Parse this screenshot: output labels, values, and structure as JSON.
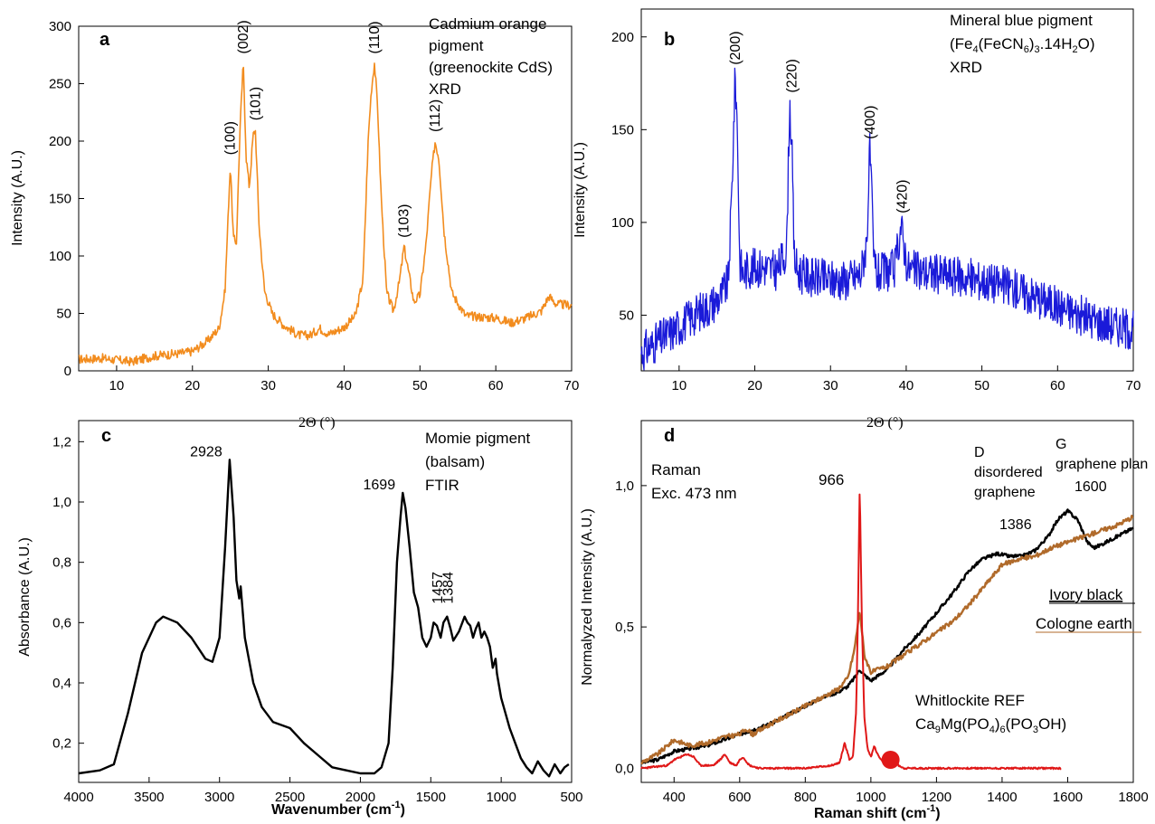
{
  "chart_data": [
    {
      "id": "a",
      "type": "line",
      "panel_label": "a",
      "ylabel": "Intensity (A.U.)",
      "xlabel": "2Θ (°)",
      "xlim": [
        5,
        70
      ],
      "ylim": [
        0,
        300
      ],
      "xticks": [
        10,
        20,
        30,
        40,
        50,
        60,
        70
      ],
      "yticks": [
        0,
        50,
        100,
        150,
        200,
        250,
        300
      ],
      "legend_text": [
        "Cadmium orange",
        "pigment",
        "(greenockite CdS)",
        "XRD"
      ],
      "color": "#f28c1e",
      "series": [
        {
          "x": [
            5,
            8,
            12,
            15,
            18,
            20,
            22,
            23.5,
            24.3,
            24.8,
            25.0,
            25.4,
            25.8,
            26.3,
            26.7,
            27.1,
            27.5,
            28.0,
            28.3,
            28.8,
            29.5,
            30.5,
            32,
            34,
            35.5,
            36.8,
            38,
            40,
            41.5,
            42.5,
            43.2,
            43.6,
            44.0,
            44.4,
            44.9,
            45.6,
            46.5,
            47.3,
            47.9,
            48.4,
            49.2,
            50.0,
            50.8,
            51.5,
            52.0,
            52.5,
            53.2,
            54.2,
            56,
            58,
            60,
            62,
            64,
            66,
            67,
            68,
            70
          ],
          "y": [
            10,
            11,
            8,
            13,
            15,
            17,
            26,
            37,
            70,
            150,
            180,
            115,
            112,
            215,
            268,
            185,
            160,
            205,
            210,
            125,
            70,
            50,
            40,
            31,
            31,
            37,
            32,
            38,
            48,
            80,
            205,
            245,
            268,
            232,
            150,
            68,
            52,
            78,
            108,
            90,
            60,
            66,
            110,
            170,
            200,
            185,
            120,
            68,
            48,
            47,
            46,
            42,
            46,
            52,
            65,
            58,
            57
          ]
        }
      ],
      "peak_labels": [
        {
          "x": 25.0,
          "y": 180,
          "text": "(100)"
        },
        {
          "x": 26.7,
          "y": 268,
          "text": "(002)"
        },
        {
          "x": 28.3,
          "y": 210,
          "text": "(101)"
        },
        {
          "x": 44.0,
          "y": 268,
          "text": "(110)"
        },
        {
          "x": 47.9,
          "y": 108,
          "text": "(103)"
        },
        {
          "x": 52.0,
          "y": 200,
          "text": "(112)"
        }
      ]
    },
    {
      "id": "b",
      "type": "line",
      "panel_label": "b",
      "ylabel": "Intensity (A.U.)",
      "xlabel": "2Θ (°)",
      "xlim": [
        5,
        70
      ],
      "ylim": [
        20,
        215
      ],
      "xticks": [
        10,
        20,
        30,
        40,
        50,
        60,
        70
      ],
      "yticks": [
        50,
        100,
        150,
        200
      ],
      "legend_text": [
        "Mineral blue pigment",
        "(Fe4(FeCN6)3.14H2O)",
        "XRD"
      ],
      "color": "#1a1ad9",
      "series": [
        {
          "x": [
            5,
            8,
            10,
            12,
            14,
            15.5,
            16.5,
            17.0,
            17.4,
            17.7,
            18.0,
            18.4,
            19,
            21,
            23,
            24.2,
            24.6,
            24.9,
            25.2,
            25.6,
            26.3,
            28,
            30,
            32,
            34,
            34.8,
            35.2,
            35.4,
            35.7,
            36.2,
            37,
            38.5,
            39.3,
            39.7,
            40.2,
            41,
            43,
            45,
            48,
            51,
            54,
            57,
            60,
            63,
            66,
            70
          ],
          "y": [
            30,
            38,
            44,
            50,
            55,
            60,
            68,
            120,
            180,
            150,
            80,
            72,
            75,
            76,
            74,
            85,
            165,
            140,
            82,
            74,
            72,
            70,
            69,
            69,
            72,
            90,
            140,
            118,
            80,
            72,
            73,
            75,
            98,
            88,
            75,
            74,
            73,
            72,
            70,
            68,
            65,
            60,
            55,
            50,
            46,
            42
          ]
        }
      ],
      "peak_labels": [
        {
          "x": 17.4,
          "y": 180,
          "text": "(200)"
        },
        {
          "x": 24.9,
          "y": 165,
          "text": "(220)"
        },
        {
          "x": 35.2,
          "y": 140,
          "text": "(400)"
        },
        {
          "x": 39.5,
          "y": 100,
          "text": "(420)"
        }
      ]
    },
    {
      "id": "c",
      "type": "line",
      "panel_label": "c",
      "ylabel": "Absorbance (A.U.)",
      "xlabel": "Wavenumber (cm-1)",
      "xlim": [
        4000,
        500
      ],
      "ylim": [
        0.07,
        1.27
      ],
      "xticks": [
        4000,
        3500,
        3000,
        2500,
        2000,
        1500,
        1000,
        500
      ],
      "yticks": [
        0.2,
        0.4,
        0.6,
        0.8,
        1.0,
        1.2
      ],
      "ytick_labels": [
        "0,2",
        "0,4",
        "0,6",
        "0,8",
        "1,0",
        "1,2"
      ],
      "legend_text": [
        "Momie pigment",
        "(balsam)",
        "FTIR"
      ],
      "color": "#000000",
      "series": [
        {
          "x": [
            4000,
            3850,
            3750,
            3650,
            3550,
            3450,
            3400,
            3300,
            3200,
            3100,
            3050,
            3000,
            2960,
            2928,
            2900,
            2880,
            2860,
            2850,
            2820,
            2760,
            2700,
            2620,
            2500,
            2400,
            2300,
            2200,
            2100,
            2000,
            1900,
            1850,
            1800,
            1770,
            1740,
            1715,
            1699,
            1680,
            1650,
            1620,
            1590,
            1560,
            1530,
            1500,
            1480,
            1457,
            1430,
            1410,
            1384,
            1360,
            1340,
            1300,
            1260,
            1240,
            1220,
            1200,
            1180,
            1160,
            1140,
            1120,
            1100,
            1080,
            1060,
            1040,
            1030,
            1000,
            970,
            940,
            900,
            860,
            820,
            780,
            740,
            700,
            660,
            620,
            580,
            550,
            520
          ],
          "y": [
            0.1,
            0.11,
            0.13,
            0.3,
            0.5,
            0.6,
            0.62,
            0.6,
            0.55,
            0.48,
            0.47,
            0.55,
            0.85,
            1.14,
            0.95,
            0.74,
            0.68,
            0.72,
            0.55,
            0.4,
            0.32,
            0.27,
            0.25,
            0.2,
            0.16,
            0.12,
            0.11,
            0.1,
            0.1,
            0.12,
            0.2,
            0.45,
            0.8,
            0.95,
            1.03,
            0.98,
            0.85,
            0.7,
            0.65,
            0.55,
            0.52,
            0.55,
            0.6,
            0.59,
            0.55,
            0.6,
            0.62,
            0.58,
            0.54,
            0.57,
            0.62,
            0.6,
            0.59,
            0.55,
            0.58,
            0.6,
            0.55,
            0.57,
            0.55,
            0.52,
            0.45,
            0.48,
            0.43,
            0.35,
            0.3,
            0.25,
            0.2,
            0.15,
            0.12,
            0.1,
            0.14,
            0.11,
            0.09,
            0.13,
            0.1,
            0.12,
            0.13
          ]
        }
      ],
      "peak_labels": [
        {
          "x": 2928,
          "y": 1.14,
          "text": "2928"
        },
        {
          "x": 1699,
          "y": 1.03,
          "text": "1699"
        },
        {
          "x": 1457,
          "y": 0.62,
          "text": "1457"
        },
        {
          "x": 1384,
          "y": 0.62,
          "text": "1384"
        }
      ]
    },
    {
      "id": "d",
      "type": "line",
      "panel_label": "d",
      "ylabel": "Normalyzed Intensity (A.U.)",
      "xlabel": "Raman shift (cm-1)",
      "xlim": [
        300,
        1800
      ],
      "ylim": [
        -0.05,
        1.23
      ],
      "xticks": [
        400,
        600,
        800,
        1000,
        1200,
        1400,
        1600,
        1800
      ],
      "yticks": [
        0.0,
        0.5,
        1.0
      ],
      "ytick_labels": [
        "0,0",
        "0,5",
        "1,0"
      ],
      "annotation": [
        "Raman",
        "Exc. 473 nm"
      ],
      "peak_966": "966",
      "d_band": [
        "D",
        "disordered",
        "graphene",
        "1386"
      ],
      "g_band": [
        "G",
        "graphene plan",
        "1600"
      ],
      "series": [
        {
          "name": "Ivory black",
          "color": "#000000",
          "x": [
            300,
            350,
            400,
            450,
            500,
            550,
            600,
            650,
            700,
            750,
            800,
            850,
            900,
            930,
            950,
            966,
            980,
            1000,
            1050,
            1100,
            1150,
            1200,
            1250,
            1300,
            1340,
            1386,
            1420,
            1460,
            1500,
            1540,
            1570,
            1600,
            1630,
            1660,
            1680,
            1700,
            1750,
            1800
          ],
          "y": [
            0.02,
            0.03,
            0.06,
            0.07,
            0.08,
            0.1,
            0.12,
            0.14,
            0.16,
            0.19,
            0.22,
            0.25,
            0.27,
            0.29,
            0.32,
            0.35,
            0.33,
            0.31,
            0.35,
            0.42,
            0.48,
            0.55,
            0.62,
            0.7,
            0.74,
            0.76,
            0.75,
            0.75,
            0.77,
            0.82,
            0.88,
            0.91,
            0.88,
            0.8,
            0.78,
            0.79,
            0.82,
            0.85
          ]
        },
        {
          "name": "Cologne earth",
          "color": "#b06a2a",
          "x": [
            300,
            350,
            380,
            400,
            450,
            500,
            550,
            600,
            620,
            640,
            700,
            750,
            800,
            850,
            900,
            930,
            950,
            966,
            980,
            1000,
            1050,
            1100,
            1150,
            1200,
            1250,
            1300,
            1350,
            1400,
            1450,
            1500,
            1550,
            1600,
            1650,
            1700,
            1750,
            1800
          ],
          "y": [
            0.02,
            0.05,
            0.08,
            0.1,
            0.08,
            0.09,
            0.11,
            0.12,
            0.14,
            0.12,
            0.16,
            0.19,
            0.22,
            0.25,
            0.28,
            0.32,
            0.42,
            0.56,
            0.4,
            0.34,
            0.36,
            0.4,
            0.44,
            0.48,
            0.52,
            0.58,
            0.65,
            0.72,
            0.74,
            0.75,
            0.78,
            0.8,
            0.82,
            0.84,
            0.86,
            0.89
          ]
        },
        {
          "name": "Whitlockite REF",
          "color": "#e01818",
          "x": [
            300,
            380,
            400,
            420,
            440,
            460,
            480,
            520,
            540,
            555,
            570,
            590,
            600,
            610,
            630,
            660,
            700,
            800,
            880,
            905,
            920,
            935,
            945,
            955,
            960,
            966,
            972,
            980,
            990,
            1000,
            1010,
            1020,
            1030,
            1045,
            1060,
            1075,
            1085,
            1100,
            1150,
            1200,
            1300,
            1400,
            1500,
            1580
          ],
          "y": [
            0.0,
            0.01,
            0.03,
            0.04,
            0.05,
            0.04,
            0.01,
            0.01,
            0.03,
            0.05,
            0.02,
            0.01,
            0.03,
            0.04,
            0.01,
            0.0,
            0.0,
            0.0,
            0.01,
            0.02,
            0.09,
            0.03,
            0.04,
            0.2,
            0.5,
            1.0,
            0.55,
            0.18,
            0.07,
            0.04,
            0.08,
            0.05,
            0.03,
            0.02,
            0.02,
            0.03,
            0.01,
            0.0,
            0.0,
            0.0,
            0.0,
            0.0,
            0.0,
            0.0
          ]
        }
      ],
      "whitlockite_label": [
        "Whitlockite REF",
        "Ca9Mg(PO4)6(PO3OH)"
      ],
      "marker": {
        "x": 1060,
        "y": 0.03,
        "color": "#e01818"
      }
    }
  ]
}
